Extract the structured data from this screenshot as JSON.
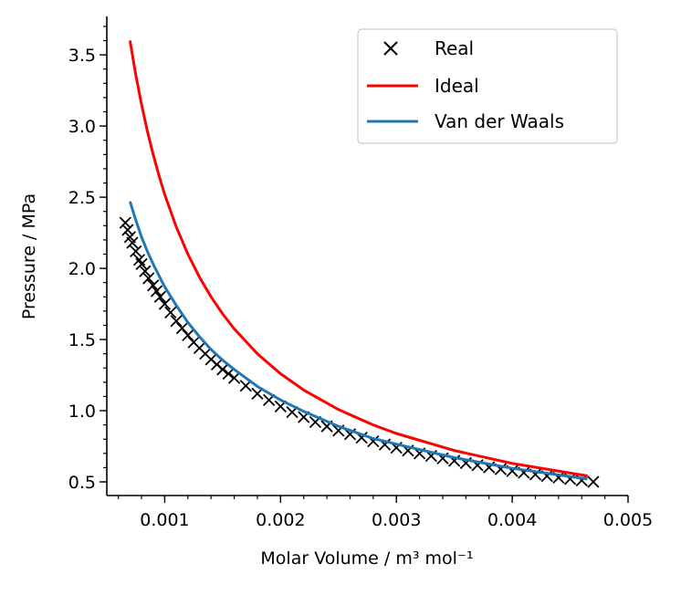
{
  "chart_data": {
    "type": "line",
    "title": "",
    "xlabel": "Molar Volume / m³ mol⁻¹",
    "ylabel": "Pressure / MPa",
    "xlim": [
      0.0005,
      0.005
    ],
    "ylim": [
      0.404,
      3.77
    ],
    "xticks": [
      0.001,
      0.002,
      0.003,
      0.004,
      0.005
    ],
    "xtick_labels": [
      "0.001",
      "0.002",
      "0.003",
      "0.004",
      "0.005"
    ],
    "xminor_step": 0.0002,
    "yticks": [
      0.5,
      1.0,
      1.5,
      2.0,
      2.5,
      3.0,
      3.5
    ],
    "ytick_labels": [
      "0.5",
      "1.0",
      "1.5",
      "2.0",
      "2.5",
      "3.0",
      "3.5"
    ],
    "yminor_step": 0.1,
    "grid": false,
    "legend_position": "top-right",
    "series": [
      {
        "name": "Real",
        "style": "marker-x",
        "color": "#000000",
        "x": [
          0.00066,
          0.00068,
          0.0007,
          0.00072,
          0.00075,
          0.00078,
          0.0008,
          0.00083,
          0.00086,
          0.0009,
          0.00093,
          0.00096,
          0.001,
          0.00105,
          0.0011,
          0.00115,
          0.0012,
          0.00125,
          0.0013,
          0.00135,
          0.0014,
          0.00145,
          0.0015,
          0.00155,
          0.0016,
          0.0017,
          0.0018,
          0.0019,
          0.002,
          0.0021,
          0.0022,
          0.0023,
          0.0024,
          0.0025,
          0.0026,
          0.0027,
          0.0028,
          0.0029,
          0.003,
          0.0031,
          0.0032,
          0.0033,
          0.0034,
          0.0035,
          0.0036,
          0.0037,
          0.0038,
          0.0039,
          0.004,
          0.0041,
          0.0042,
          0.0043,
          0.0044,
          0.0045,
          0.0046,
          0.0047
        ],
        "y": [
          2.32,
          2.27,
          2.22,
          2.18,
          2.12,
          2.06,
          2.03,
          1.98,
          1.93,
          1.88,
          1.84,
          1.8,
          1.75,
          1.69,
          1.63,
          1.58,
          1.53,
          1.48,
          1.44,
          1.4,
          1.36,
          1.325,
          1.29,
          1.26,
          1.23,
          1.175,
          1.12,
          1.075,
          1.03,
          0.99,
          0.955,
          0.92,
          0.89,
          0.86,
          0.835,
          0.81,
          0.785,
          0.762,
          0.74,
          0.72,
          0.7,
          0.682,
          0.665,
          0.648,
          0.632,
          0.617,
          0.602,
          0.589,
          0.576,
          0.564,
          0.552,
          0.541,
          0.53,
          0.52,
          0.51,
          0.5
        ]
      },
      {
        "name": "Ideal",
        "style": "line",
        "color": "#ff0000",
        "x": [
          0.0007,
          0.00075,
          0.0008,
          0.00085,
          0.0009,
          0.00095,
          0.001,
          0.0011,
          0.0012,
          0.0013,
          0.0014,
          0.0015,
          0.0016,
          0.0018,
          0.002,
          0.0022,
          0.0025,
          0.0028,
          0.003,
          0.0035,
          0.004,
          0.00465
        ],
        "y": [
          3.6,
          3.36,
          3.15,
          2.965,
          2.8,
          2.653,
          2.52,
          2.291,
          2.1,
          1.938,
          1.8,
          1.68,
          1.575,
          1.4,
          1.26,
          1.145,
          1.008,
          0.9,
          0.84,
          0.72,
          0.63,
          0.542
        ]
      },
      {
        "name": "Van der Waals",
        "style": "line",
        "color": "#1f77b4",
        "x": [
          0.0007,
          0.00075,
          0.0008,
          0.00085,
          0.0009,
          0.00095,
          0.001,
          0.0011,
          0.0012,
          0.0013,
          0.0014,
          0.0015,
          0.0016,
          0.0018,
          0.002,
          0.0022,
          0.0025,
          0.0028,
          0.003,
          0.0035,
          0.004,
          0.00465
        ],
        "y": [
          2.47,
          2.34,
          2.22,
          2.12,
          2.03,
          1.95,
          1.87,
          1.74,
          1.62,
          1.52,
          1.43,
          1.355,
          1.29,
          1.17,
          1.075,
          0.995,
          0.89,
          0.805,
          0.765,
          0.67,
          0.595,
          0.52
        ]
      }
    ]
  }
}
